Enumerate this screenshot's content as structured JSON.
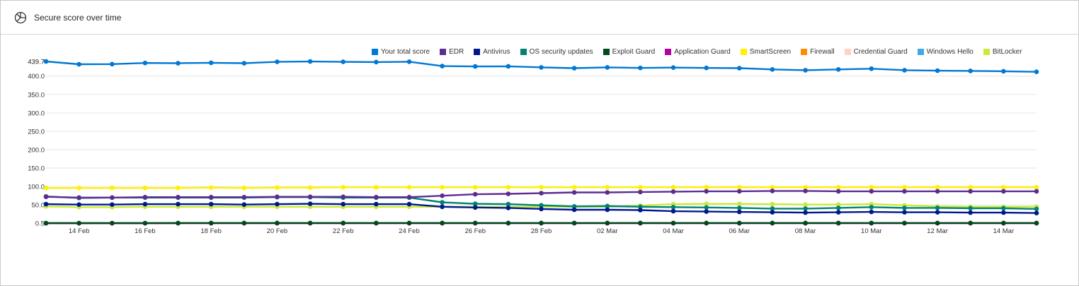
{
  "panel": {
    "title": "Secure score over time",
    "icon": "pie-chart-icon"
  },
  "chart_data": {
    "type": "line",
    "title": "",
    "xlabel": "",
    "ylabel": "",
    "ylim": [
      0.5,
      439.7
    ],
    "y_ticks": [
      "0.5",
      "50.0",
      "100.0",
      "150.0",
      "200.0",
      "250.0",
      "300.0",
      "350.0",
      "400.0"
    ],
    "y_max_label": "439.7",
    "x": [
      "13 Feb",
      "14 Feb",
      "15 Feb",
      "16 Feb",
      "17 Feb",
      "18 Feb",
      "19 Feb",
      "20 Feb",
      "21 Feb",
      "22 Feb",
      "23 Feb",
      "24 Feb",
      "25 Feb",
      "26 Feb",
      "27 Feb",
      "28 Feb",
      "01 Mar",
      "02 Mar",
      "03 Mar",
      "04 Mar",
      "05 Mar",
      "06 Mar",
      "07 Mar",
      "08 Mar",
      "09 Mar",
      "10 Mar",
      "11 Mar",
      "12 Mar",
      "13 Mar",
      "14 Mar",
      "15 Mar"
    ],
    "x_tick_labels": [
      "14 Feb",
      "16 Feb",
      "18 Feb",
      "20 Feb",
      "22 Feb",
      "24 Feb",
      "26 Feb",
      "28 Feb",
      "02 Mar",
      "04 Mar",
      "06 Mar",
      "08 Mar",
      "10 Mar",
      "12 Mar",
      "14 Mar"
    ],
    "grid": "horizontal",
    "legend_position": "top-right",
    "series": [
      {
        "name": "Your total score",
        "color": "#0078d4",
        "values": [
          439.7,
          432,
          432.5,
          435.5,
          435,
          436,
          435,
          438.5,
          439.5,
          438.5,
          438,
          439,
          427,
          426,
          426.5,
          423.5,
          421.5,
          423.5,
          422,
          423,
          422,
          421.5,
          418,
          416,
          418,
          420,
          416,
          414.5,
          414,
          413,
          411.5
        ]
      },
      {
        "name": "EDR",
        "color": "#5c2d91",
        "values": [
          72,
          70,
          70,
          71,
          71,
          71,
          71,
          72,
          72,
          72,
          71,
          71,
          75,
          79,
          80,
          82,
          84,
          84,
          85,
          86,
          87,
          87,
          88,
          88,
          87,
          87,
          87,
          87,
          87,
          87,
          87
        ]
      },
      {
        "name": "Antivirus",
        "color": "#00188f",
        "values": [
          52,
          51,
          51,
          52,
          52,
          52,
          51,
          52,
          53,
          52,
          52,
          52,
          45,
          43,
          42,
          39,
          37,
          37,
          36,
          33,
          32,
          31,
          30,
          29,
          30,
          31,
          30,
          30,
          29,
          29,
          28
        ]
      },
      {
        "name": "OS security updates",
        "color": "#008272",
        "values": [
          73,
          69,
          70,
          70,
          70,
          70,
          70,
          71,
          71,
          70,
          70,
          70,
          57,
          53,
          52,
          49,
          46,
          47,
          45,
          44,
          43,
          42,
          40,
          40,
          42,
          44,
          42,
          42,
          41,
          41,
          39
        ]
      },
      {
        "name": "Exploit Guard",
        "color": "#004b1c",
        "values": [
          0.5,
          0.5,
          0.5,
          0.5,
          0.8,
          0.8,
          0.8,
          0.8,
          0.8,
          0.8,
          0.8,
          0.8,
          0.8,
          0.8,
          0.8,
          0.8,
          0.8,
          0.8,
          0.8,
          0.8,
          0.8,
          0.8,
          0.8,
          0.8,
          0.8,
          0.8,
          0.8,
          0.8,
          0.8,
          0.8,
          0.8
        ]
      },
      {
        "name": "Application Guard",
        "color": "#b4009e",
        "values": [
          0.5,
          0.5,
          0.5,
          0.5,
          0.5,
          0.5,
          0.5,
          0.5,
          0.5,
          0.5,
          0.5,
          0.5,
          0.5,
          0.5,
          0.5,
          0.5,
          0.5,
          0.5,
          0.5,
          0.5,
          0.5,
          0.5,
          0.5,
          0.5,
          0.5,
          0.5,
          0.5,
          0.5,
          0.5,
          0.5,
          0.5
        ]
      },
      {
        "name": "SmartScreen",
        "color": "#fff100",
        "values": [
          96,
          96,
          96,
          96,
          96,
          97,
          96,
          97,
          97,
          98,
          98,
          98,
          98,
          98,
          98,
          98,
          98,
          98,
          98,
          98,
          98,
          98,
          98,
          98,
          98,
          98,
          98,
          98,
          98,
          98,
          98
        ]
      },
      {
        "name": "Firewall",
        "color": "#ff8c00",
        "values": [
          0.5,
          0.5,
          0.5,
          0.5,
          0.5,
          0.5,
          0.5,
          0.5,
          0.5,
          0.5,
          0.5,
          0.5,
          0.5,
          0.5,
          0.5,
          0.5,
          0.5,
          0.5,
          0.5,
          0.5,
          0.5,
          0.5,
          0.5,
          0.5,
          0.5,
          0.5,
          0.5,
          0.5,
          0.5,
          0.5,
          0.5
        ]
      },
      {
        "name": "Credential Guard",
        "color": "#ffd2c3",
        "values": [
          0.5,
          0.5,
          0.5,
          0.5,
          0.5,
          0.5,
          0.5,
          0.5,
          0.5,
          0.5,
          0.5,
          0.5,
          0.5,
          0.5,
          0.5,
          0.5,
          0.5,
          0.5,
          0.5,
          0.5,
          0.5,
          0.5,
          0.5,
          0.5,
          0.5,
          0.5,
          0.5,
          0.5,
          0.5,
          0.5,
          0.5
        ]
      },
      {
        "name": "Windows Hello",
        "color": "#40a8e6",
        "values": [
          0.5,
          0.5,
          0.5,
          0.5,
          0.5,
          0.5,
          0.5,
          0.5,
          0.5,
          0.5,
          0.5,
          0.5,
          0.5,
          0.5,
          0.5,
          0.5,
          0.5,
          0.5,
          0.5,
          0.5,
          0.5,
          0.5,
          0.5,
          0.5,
          0.5,
          0.5,
          0.5,
          0.5,
          0.5,
          0.5,
          0.5
        ]
      },
      {
        "name": "BitLocker",
        "color": "#c9ea3a",
        "values": [
          46,
          44,
          44,
          45,
          45,
          45,
          45,
          45,
          45,
          45,
          45,
          45,
          45,
          45,
          45,
          45,
          45,
          45,
          48,
          52,
          53,
          53,
          52,
          51,
          51,
          52,
          49,
          46,
          45,
          45,
          45
        ]
      }
    ]
  }
}
